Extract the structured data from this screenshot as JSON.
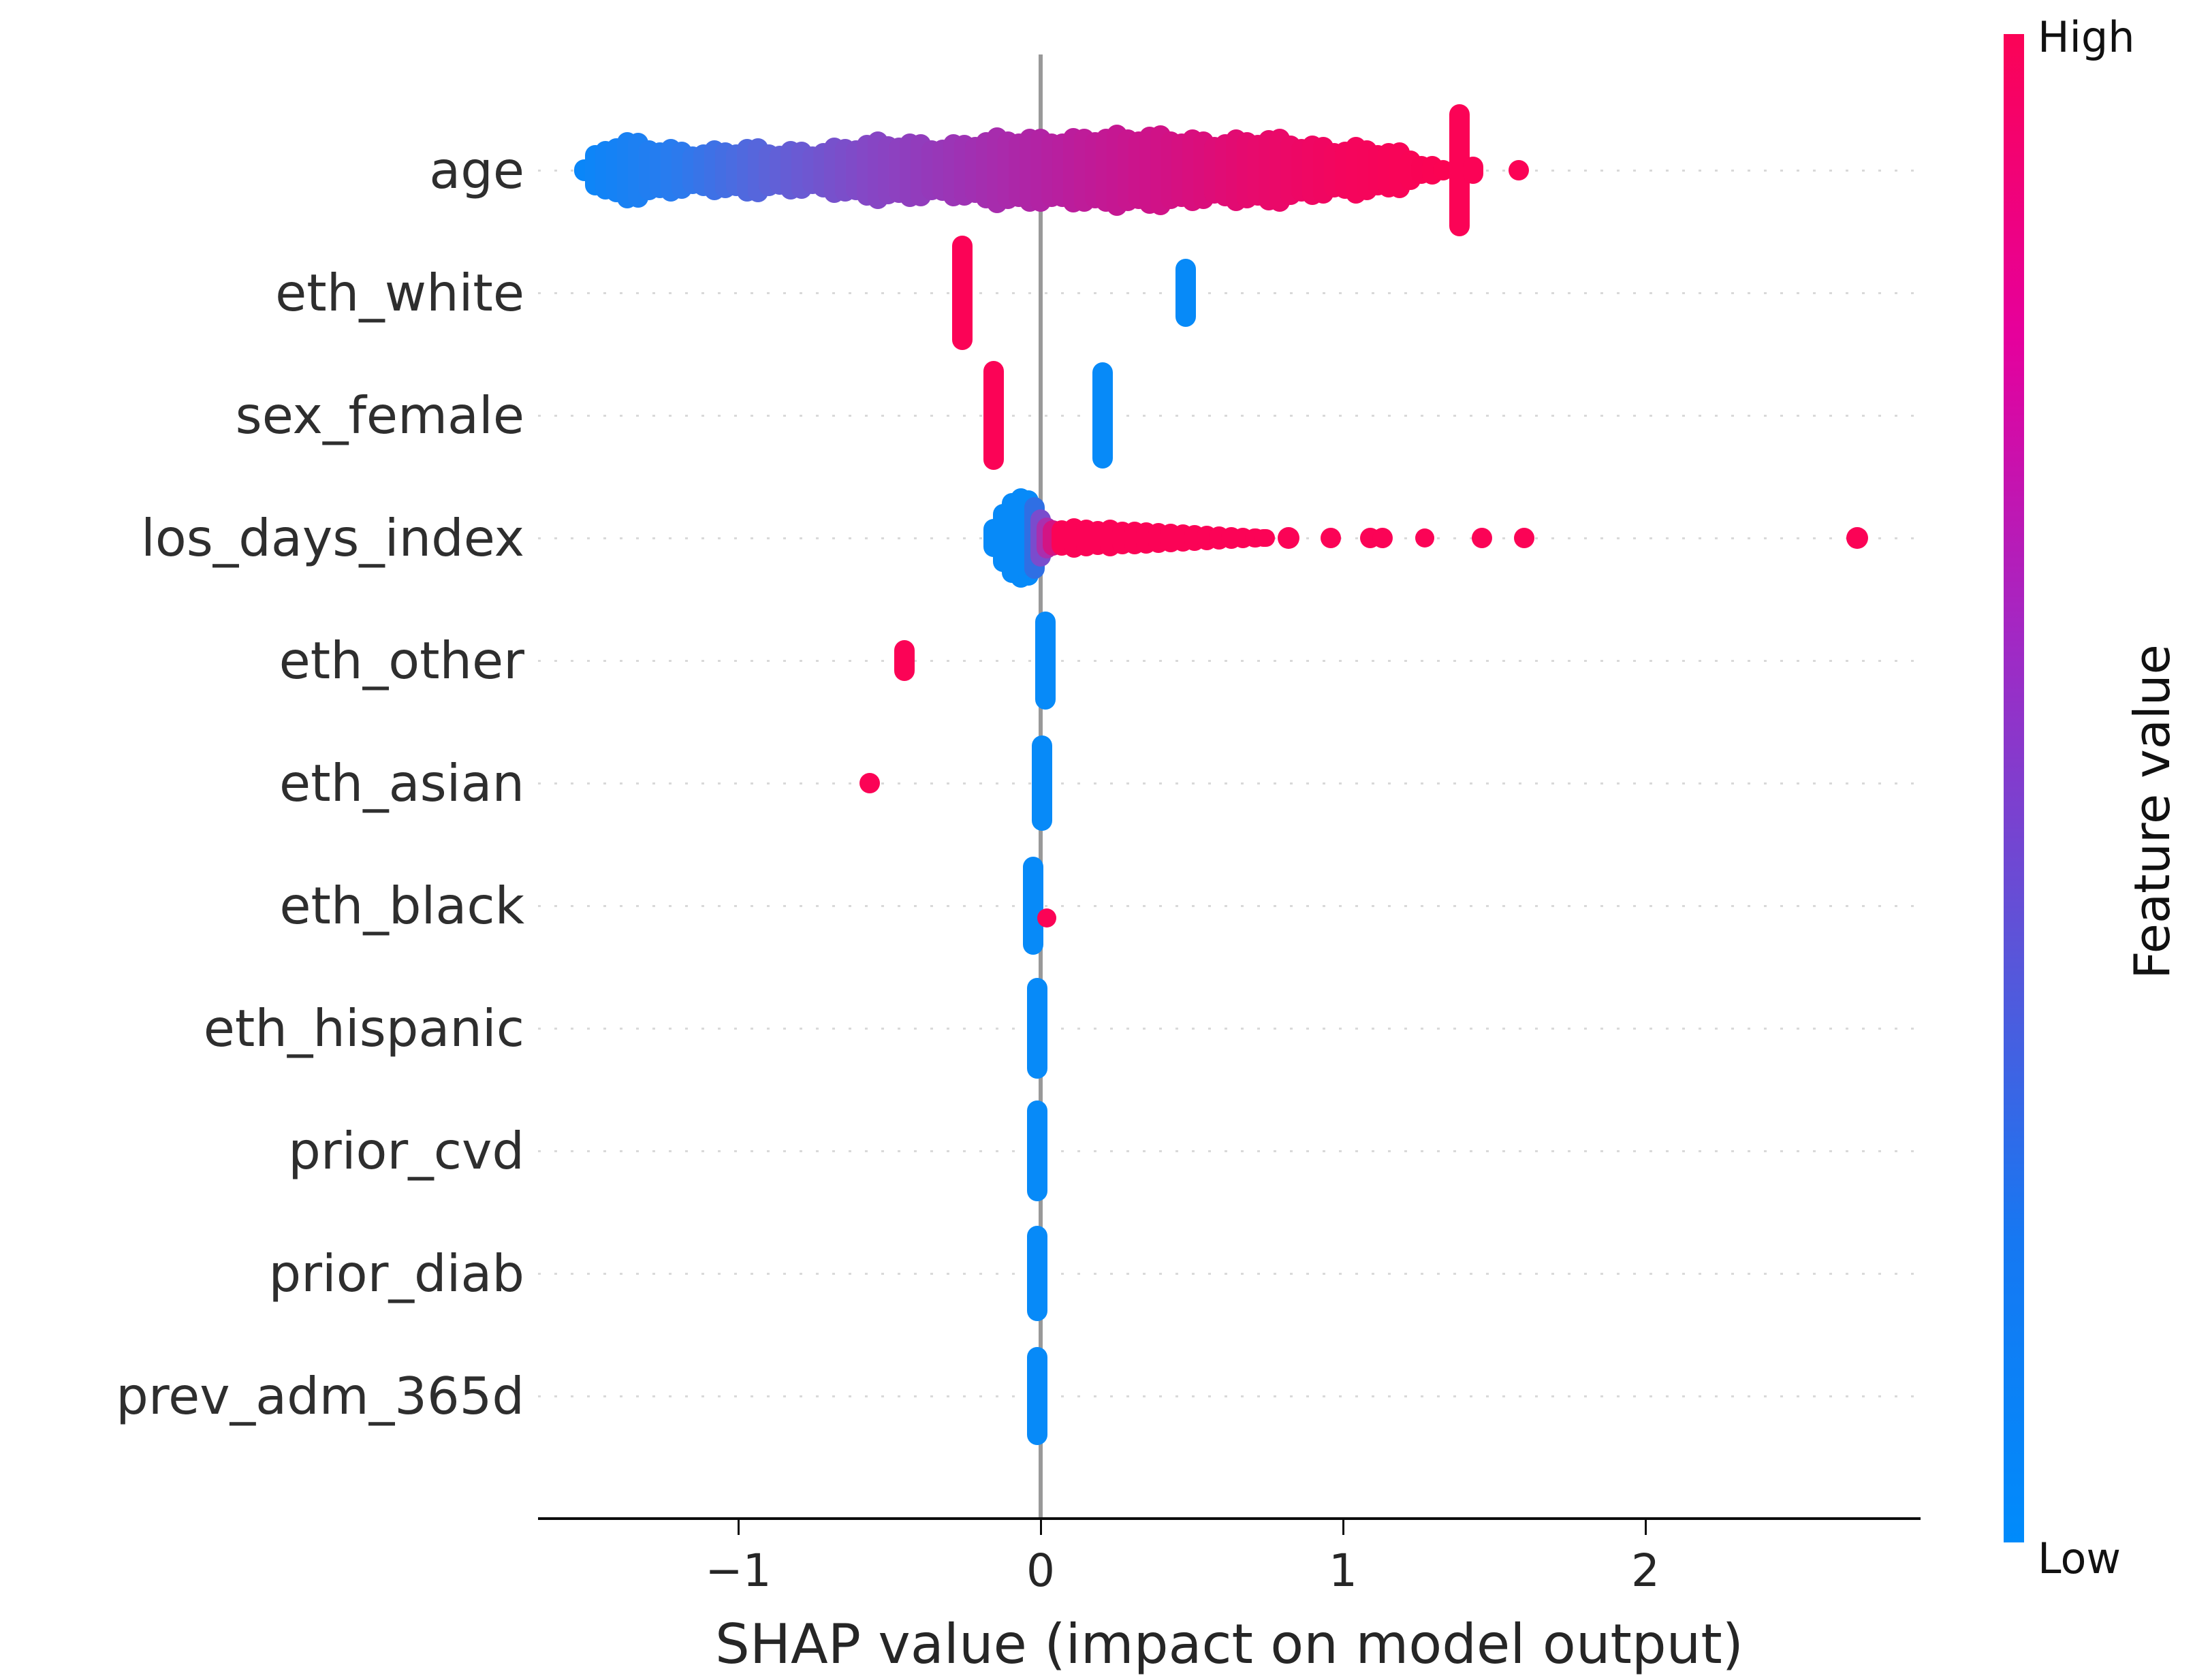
{
  "chart": {
    "background": "#ffffff",
    "x_axis": {
      "label": "SHAP value (impact on model output)",
      "tick_labels": [
        "−1",
        "0",
        "1",
        "2"
      ],
      "tick_values": [
        -1,
        0,
        1,
        2
      ]
    },
    "colorbar": {
      "high_label": "High",
      "low_label": "Low",
      "axis_label": "Feature value",
      "gradient": [
        "#fb0356",
        "#e6009c",
        "#a228c4",
        "#5d53d8",
        "#1678f2",
        "#008bfb"
      ]
    },
    "colors": {
      "red": "#fb0356",
      "blue": "#078af8",
      "zero_line": "#999999",
      "axis": "#0d0d0d",
      "grid": "#d9d9d9",
      "label": "#2e2e2e"
    },
    "age_colormap": [
      "#0a86f8",
      "#2b7bee",
      "#5f61d8",
      "#8547c5",
      "#9e32b4",
      "#b81f9f",
      "#cf1288",
      "#e60a6e",
      "#f4055d",
      "#fb0353"
    ],
    "rows": [
      {
        "name": "age",
        "elements": [
          {
            "type": "swarm",
            "from": -1.51,
            "to": 1.33,
            "profile": [
              [
                -1.51,
                16
              ],
              [
                -1.45,
                40
              ],
              [
                -1.38,
                52
              ],
              [
                -1.28,
                47
              ],
              [
                -1.18,
                43
              ],
              [
                -1.08,
                39
              ],
              [
                -0.98,
                41
              ],
              [
                -0.88,
                39
              ],
              [
                -0.78,
                42
              ],
              [
                -0.66,
                45
              ],
              [
                -0.54,
                49
              ],
              [
                -0.42,
                52
              ],
              [
                -0.3,
                50
              ],
              [
                -0.18,
                54
              ],
              [
                -0.06,
                57
              ],
              [
                0.06,
                60
              ],
              [
                0.18,
                62
              ],
              [
                0.3,
                58
              ],
              [
                0.42,
                62
              ],
              [
                0.54,
                57
              ],
              [
                0.66,
                53
              ],
              [
                0.78,
                55
              ],
              [
                0.9,
                50
              ],
              [
                1.0,
                46
              ],
              [
                1.1,
                41
              ],
              [
                1.2,
                32
              ],
              [
                1.28,
                22
              ],
              [
                1.33,
                14
              ]
            ]
          },
          {
            "type": "capsule",
            "shap": 1.385,
            "half": 97,
            "color": "red"
          },
          {
            "type": "capsule",
            "shap": 1.43,
            "half": 20,
            "color": "red"
          },
          {
            "type": "dot",
            "shap": 1.58,
            "r": 15,
            "color": "red"
          }
        ]
      },
      {
        "name": "eth_white",
        "elements": [
          {
            "type": "capsule",
            "shap": -0.26,
            "half": 84,
            "color": "red"
          },
          {
            "type": "capsule",
            "shap": 0.48,
            "half": 50,
            "color": "blue"
          }
        ]
      },
      {
        "name": "sex_female",
        "elements": [
          {
            "type": "capsule",
            "shap": -0.155,
            "half": 80,
            "color": "red"
          },
          {
            "type": "capsule",
            "shap": 0.205,
            "half": 78,
            "color": "blue"
          }
        ]
      },
      {
        "name": "los_days_index",
        "elements": [
          {
            "type": "capsule",
            "shap": -0.155,
            "half": 28,
            "color": "blue"
          },
          {
            "type": "capsule",
            "shap": -0.125,
            "half": 50,
            "color": "blue"
          },
          {
            "type": "capsule",
            "shap": -0.095,
            "half": 66,
            "color": "blue"
          },
          {
            "type": "capsule",
            "shap": -0.065,
            "half": 73,
            "color": "blue"
          },
          {
            "type": "capsule",
            "shap": -0.04,
            "half": 70,
            "color": "blue"
          },
          {
            "type": "capsule",
            "shap": -0.02,
            "half": 60,
            "color": "#2f6fe4"
          },
          {
            "type": "capsule",
            "shap": 0.0,
            "half": 42,
            "color": "#7a4ccd"
          },
          {
            "type": "capsule",
            "shap": 0.02,
            "half": 30,
            "color": "#aa2fae"
          },
          {
            "type": "capsule",
            "shap": 0.04,
            "half": 26,
            "color": "#d31484"
          },
          {
            "type": "capsule",
            "shap": 0.07,
            "half": 26,
            "color": "red"
          },
          {
            "type": "capsule",
            "shap": 0.11,
            "half": 29,
            "color": "red"
          },
          {
            "type": "capsule",
            "shap": 0.15,
            "half": 27,
            "color": "red"
          },
          {
            "type": "capsule",
            "shap": 0.19,
            "half": 25,
            "color": "red"
          },
          {
            "type": "capsule",
            "shap": 0.23,
            "half": 27,
            "color": "red"
          },
          {
            "type": "capsule",
            "shap": 0.27,
            "half": 24,
            "color": "red"
          },
          {
            "type": "capsule",
            "shap": 0.31,
            "half": 24,
            "color": "red"
          },
          {
            "type": "capsule",
            "shap": 0.35,
            "half": 23,
            "color": "red"
          },
          {
            "type": "capsule",
            "shap": 0.39,
            "half": 22,
            "color": "red"
          },
          {
            "type": "capsule",
            "shap": 0.43,
            "half": 21,
            "color": "red"
          },
          {
            "type": "capsule",
            "shap": 0.47,
            "half": 20,
            "color": "red"
          },
          {
            "type": "capsule",
            "shap": 0.51,
            "half": 19,
            "color": "red"
          },
          {
            "type": "capsule",
            "shap": 0.55,
            "half": 18,
            "color": "red"
          },
          {
            "type": "capsule",
            "shap": 0.59,
            "half": 17,
            "color": "red"
          },
          {
            "type": "capsule",
            "shap": 0.63,
            "half": 16,
            "color": "red"
          },
          {
            "type": "capsule",
            "shap": 0.67,
            "half": 15,
            "color": "red"
          },
          {
            "type": "capsule",
            "shap": 0.71,
            "half": 14,
            "color": "red"
          },
          {
            "type": "capsule",
            "shap": 0.74,
            "half": 13,
            "color": "red"
          },
          {
            "type": "dot",
            "shap": 0.82,
            "r": 16,
            "color": "red"
          },
          {
            "type": "dot",
            "shap": 0.96,
            "r": 15,
            "color": "red"
          },
          {
            "type": "dot",
            "shap": 1.09,
            "r": 15,
            "color": "red"
          },
          {
            "type": "dot",
            "shap": 1.13,
            "r": 15,
            "color": "red"
          },
          {
            "type": "dot",
            "shap": 1.27,
            "r": 14,
            "color": "red"
          },
          {
            "type": "dot",
            "shap": 1.46,
            "r": 15,
            "color": "red"
          },
          {
            "type": "dot",
            "shap": 1.6,
            "r": 15,
            "color": "red"
          },
          {
            "type": "dot",
            "shap": 2.7,
            "r": 16,
            "color": "red"
          }
        ]
      },
      {
        "name": "eth_other",
        "elements": [
          {
            "type": "capsule",
            "shap": -0.45,
            "half": 30,
            "color": "red"
          },
          {
            "type": "capsule",
            "shap": 0.015,
            "half": 72,
            "color": "blue"
          }
        ]
      },
      {
        "name": "eth_asian",
        "elements": [
          {
            "type": "dot",
            "shap": -0.565,
            "r": 15,
            "color": "red"
          },
          {
            "type": "capsule",
            "shap": 0.005,
            "half": 70,
            "color": "blue"
          }
        ]
      },
      {
        "name": "eth_black",
        "elements": [
          {
            "type": "capsule",
            "shap": -0.025,
            "half": 72,
            "color": "blue"
          },
          {
            "type": "dot",
            "shap": 0.02,
            "r": 14,
            "dy": 18,
            "color": "red"
          }
        ]
      },
      {
        "name": "eth_hispanic",
        "elements": [
          {
            "type": "capsule",
            "shap": -0.012,
            "half": 74,
            "color": "blue"
          }
        ]
      },
      {
        "name": "prior_cvd",
        "elements": [
          {
            "type": "capsule",
            "shap": -0.012,
            "half": 74,
            "color": "blue"
          }
        ]
      },
      {
        "name": "prior_diab",
        "elements": [
          {
            "type": "capsule",
            "shap": -0.012,
            "half": 70,
            "color": "blue"
          }
        ]
      },
      {
        "name": "prev_adm_365d",
        "elements": [
          {
            "type": "capsule",
            "shap": -0.012,
            "half": 72,
            "color": "blue"
          }
        ]
      }
    ]
  },
  "chart_data": {
    "type": "beeswarm",
    "title": "",
    "xlabel": "SHAP value (impact on model output)",
    "x_ticks": [
      -1,
      0,
      1,
      2
    ],
    "x_range": [
      -1.66,
      2.91
    ],
    "grid": "dotted horizontal line per feature row",
    "legend_position": "right colorbar",
    "colorbar": {
      "label": "Feature value",
      "low": "Low",
      "high": "High",
      "low_color": "#008bfb",
      "high_color": "#fb0356"
    },
    "features_top_to_bottom": [
      "age",
      "eth_white",
      "sex_female",
      "los_days_index",
      "eth_other",
      "eth_asian",
      "eth_black",
      "eth_hispanic",
      "prior_cvd",
      "prior_diab",
      "prev_adm_365d"
    ],
    "series": [
      {
        "name": "age",
        "shap_range": [
          -1.51,
          1.58
        ],
        "pattern": "dense continuous swarm, feature value increases with SHAP (blue left to red right)",
        "clusters": [
          {
            "shap": 1.39,
            "feature_value": "high",
            "note": "tall narrow red bar"
          },
          {
            "shap": 1.58,
            "feature_value": "high",
            "n": 1
          }
        ]
      },
      {
        "name": "eth_white",
        "clusters": [
          {
            "shap": -0.26,
            "feature_value": "high"
          },
          {
            "shap": 0.48,
            "feature_value": "low"
          }
        ]
      },
      {
        "name": "sex_female",
        "clusters": [
          {
            "shap": -0.155,
            "feature_value": "high"
          },
          {
            "shap": 0.205,
            "feature_value": "low"
          }
        ]
      },
      {
        "name": "los_days_index",
        "shap_range": [
          -0.16,
          2.7
        ],
        "clusters": [
          {
            "shap": -0.07,
            "feature_value": "low",
            "note": "dense blob left of zero"
          },
          {
            "shap_interval": [
              0.05,
              0.74
            ],
            "feature_value": "high",
            "note": "dense thin band"
          },
          {
            "shap_outliers": [
              0.82,
              0.96,
              1.09,
              1.13,
              1.27,
              1.46,
              1.6,
              2.7
            ],
            "feature_value": "high"
          }
        ]
      },
      {
        "name": "eth_other",
        "clusters": [
          {
            "shap": -0.45,
            "feature_value": "high"
          },
          {
            "shap": 0.015,
            "feature_value": "low"
          }
        ]
      },
      {
        "name": "eth_asian",
        "clusters": [
          {
            "shap": -0.565,
            "feature_value": "high",
            "n": 1
          },
          {
            "shap": 0.005,
            "feature_value": "low"
          }
        ]
      },
      {
        "name": "eth_black",
        "clusters": [
          {
            "shap": -0.025,
            "feature_value": "low"
          },
          {
            "shap": 0.02,
            "feature_value": "high",
            "n": 1
          }
        ]
      },
      {
        "name": "eth_hispanic",
        "clusters": [
          {
            "shap": -0.01,
            "feature_value": "low"
          }
        ]
      },
      {
        "name": "prior_cvd",
        "clusters": [
          {
            "shap": -0.01,
            "feature_value": "low"
          }
        ]
      },
      {
        "name": "prior_diab",
        "clusters": [
          {
            "shap": -0.01,
            "feature_value": "low"
          }
        ]
      },
      {
        "name": "prev_adm_365d",
        "clusters": [
          {
            "shap": -0.01,
            "feature_value": "low"
          }
        ]
      }
    ]
  }
}
